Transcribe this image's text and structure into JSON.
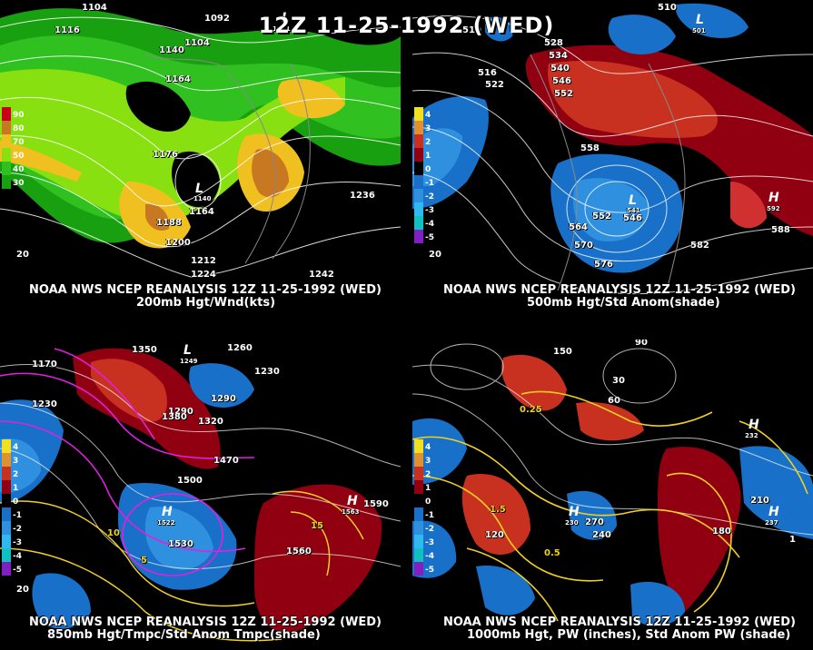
{
  "main_title": "12Z 11-25-1992 (WED)",
  "panels": [
    {
      "source": "NOAA NWS NCEP REANALYSIS 12Z 11-25-1992 (WED)",
      "product": "200mb Hgt/Wnd(kts)",
      "legend_values": [
        "90",
        "80",
        "70",
        "50",
        "40",
        "30"
      ],
      "legend_colors": [
        "#c8001a",
        "#c87820",
        "#f0c020",
        "#88e010",
        "#30c020",
        "#18a010"
      ],
      "contour_labels": [
        "1104",
        "1116",
        "1092",
        "1104",
        "1176",
        "1164",
        "1188",
        "1200",
        "1212",
        "1224",
        "1236",
        "1164",
        "1140",
        "1242",
        "20"
      ]
    },
    {
      "source": "NOAA NWS NCEP REANALYSIS 12Z 11-25-1992 (WED)",
      "product": "500mb Hgt/Std Anom(shade)",
      "legend_values": [
        "4",
        "3",
        "2",
        "1",
        "0",
        "-1",
        "-2",
        "-3",
        "-4",
        "-5"
      ],
      "legend_colors": [
        "#f0e020",
        "#e09030",
        "#c83020",
        "#900010",
        "#000000",
        "#1870c8",
        "#3090e0",
        "#30b8f0",
        "#10c0c0",
        "#8020c0"
      ],
      "contour_labels": [
        "510",
        "516",
        "522",
        "528",
        "534",
        "540",
        "546",
        "552",
        "558",
        "564",
        "570",
        "576",
        "582",
        "588",
        "552",
        "546",
        "510",
        "20"
      ]
    },
    {
      "source": "NOAA NWS NCEP REANALYSIS 12Z 11-25-1992 (WED)",
      "product": "850mb Hgt/Tmpc/Std Anom Tmpc(shade)",
      "legend_values": [
        "4",
        "3",
        "2",
        "1",
        "0",
        "-1",
        "-2",
        "-3",
        "-4",
        "-5"
      ],
      "legend_colors": [
        "#f0e020",
        "#e09030",
        "#c83020",
        "#900010",
        "#000000",
        "#1870c8",
        "#3090e0",
        "#30b8f0",
        "#10c0c0",
        "#8020c0"
      ],
      "contour_labels": [
        "1170",
        "1230",
        "1350",
        "1260",
        "1290",
        "1320",
        "1380",
        "1470",
        "1500",
        "1530",
        "1560",
        "1590",
        "1290",
        "1230",
        "10",
        "5",
        "15",
        "20"
      ]
    },
    {
      "source": "NOAA NWS NCEP REANALYSIS 12Z 11-25-1992 (WED)",
      "product": "1000mb Hgt, PW (inches), Std Anom PW (shade)",
      "legend_values": [
        "4",
        "3",
        "2",
        "1",
        "0",
        "-1",
        "-2",
        "-3",
        "-4",
        "-5"
      ],
      "legend_colors": [
        "#f0e020",
        "#e09030",
        "#c83020",
        "#900010",
        "#000000",
        "#1870c8",
        "#3090e0",
        "#30b8f0",
        "#10c0c0",
        "#8020c0"
      ],
      "contour_labels": [
        "150",
        "90",
        "30",
        "0.25",
        "0.5",
        "1.5",
        "120",
        "180",
        "210",
        "270",
        "240",
        "60",
        "1"
      ]
    }
  ],
  "pressure_centers": [
    {
      "type": "L",
      "value": "1101"
    },
    {
      "type": "L",
      "value": "1140"
    },
    {
      "type": "L",
      "value": "501"
    },
    {
      "type": "L",
      "value": "541"
    },
    {
      "type": "H",
      "value": "592"
    },
    {
      "type": "L",
      "value": "1249"
    },
    {
      "type": "H",
      "value": "1522"
    },
    {
      "type": "H",
      "value": "1563"
    },
    {
      "type": "H",
      "value": "230"
    },
    {
      "type": "H",
      "value": "232"
    },
    {
      "type": "H",
      "value": "237"
    }
  ]
}
